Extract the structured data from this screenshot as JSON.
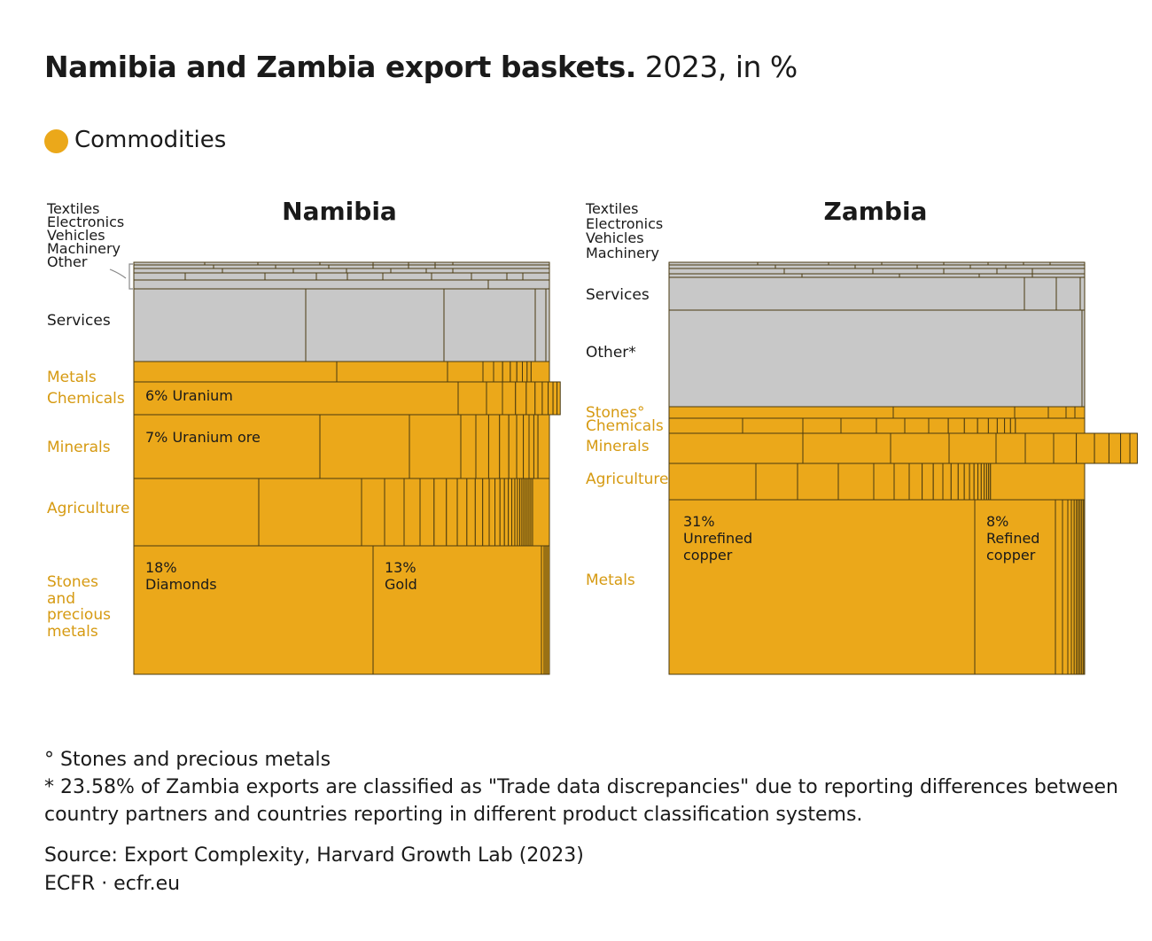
{
  "header": {
    "title_bold": "Namibia and Zambia export baskets.",
    "title_light": "2023, in %"
  },
  "legend": {
    "label": "Commodities",
    "color": "#eba81a"
  },
  "colors": {
    "commodity": "#eba81a",
    "non_commodity": "#c8c8c8",
    "border": "#4a3a10"
  },
  "chart_data": [
    {
      "type": "treemap",
      "title": "Namibia",
      "label_stack": [
        "Textiles",
        "Electronics",
        "Vehicles",
        "Machinery",
        "Other"
      ],
      "categories": [
        {
          "name": "Textiles",
          "commodity": false,
          "share": 0.3
        },
        {
          "name": "Electronics",
          "commodity": false,
          "share": 0.4
        },
        {
          "name": "Vehicles",
          "commodity": false,
          "share": 0.6
        },
        {
          "name": "Machinery",
          "commodity": false,
          "share": 1.2
        },
        {
          "name": "Other",
          "commodity": false,
          "share": 1.0
        },
        {
          "name": "Services",
          "commodity": false,
          "share": 18.0
        },
        {
          "name": "Metals",
          "commodity": true,
          "share": 5.0
        },
        {
          "name": "Chemicals",
          "commodity": true,
          "share": 8.0
        },
        {
          "name": "Minerals",
          "commodity": true,
          "share": 15.5
        },
        {
          "name": "Agriculture",
          "commodity": true,
          "share": 16.0
        },
        {
          "name": "Stones and precious metals",
          "commodity": true,
          "share": 31.5
        }
      ],
      "highlights": [
        {
          "category": "Chemicals",
          "pct": "6%",
          "product": "Uranium",
          "value": 6
        },
        {
          "category": "Minerals",
          "pct": "7%",
          "product": "Uranium ore",
          "value": 7
        },
        {
          "category": "Stones and precious metals",
          "pct": "18%",
          "product": "Diamonds",
          "value": 18
        },
        {
          "category": "Stones and precious metals",
          "pct": "13%",
          "product": "Gold",
          "value": 13
        }
      ],
      "category_labels": [
        {
          "text": "Services",
          "kind": "grey"
        },
        {
          "text": "Metals",
          "kind": "gold"
        },
        {
          "text": "Chemicals",
          "kind": "gold"
        },
        {
          "text": "Minerals",
          "kind": "gold"
        },
        {
          "text": "Agriculture",
          "kind": "gold"
        },
        {
          "lines": [
            "Stones",
            "and",
            "precious",
            "metals"
          ],
          "kind": "gold"
        }
      ]
    },
    {
      "type": "treemap",
      "title": "Zambia",
      "label_stack": [
        "Textiles",
        "Electronics",
        "Vehicles",
        "Machinery"
      ],
      "categories": [
        {
          "name": "Textiles",
          "commodity": false,
          "share": 0.2
        },
        {
          "name": "Electronics",
          "commodity": false,
          "share": 0.3
        },
        {
          "name": "Vehicles",
          "commodity": false,
          "share": 0.6
        },
        {
          "name": "Machinery",
          "commodity": false,
          "share": 1.0
        },
        {
          "name": "Services",
          "commodity": false,
          "share": 7.5
        },
        {
          "name": "Other*",
          "commodity": false,
          "share": 23.58
        },
        {
          "name": "Stones°",
          "commodity": true,
          "share": 2.2
        },
        {
          "name": "Chemicals",
          "commodity": true,
          "share": 3.0
        },
        {
          "name": "Minerals",
          "commodity": true,
          "share": 7.0
        },
        {
          "name": "Agriculture",
          "commodity": true,
          "share": 9.5
        },
        {
          "name": "Metals",
          "commodity": true,
          "share": 41.0
        }
      ],
      "highlights": [
        {
          "category": "Metals",
          "pct": "31%",
          "product": "Unrefined copper",
          "value": 31
        },
        {
          "category": "Metals",
          "pct": "8%",
          "product": "Refined copper",
          "value": 8
        }
      ],
      "category_labels": [
        {
          "text": "Services",
          "kind": "grey"
        },
        {
          "text": "Other*",
          "kind": "grey"
        },
        {
          "text": "Stones°",
          "kind": "gold"
        },
        {
          "text": "Chemicals",
          "kind": "gold"
        },
        {
          "text": "Minerals",
          "kind": "gold"
        },
        {
          "text": "Agriculture",
          "kind": "gold"
        },
        {
          "text": "Metals",
          "kind": "gold"
        }
      ]
    }
  ],
  "notes": {
    "footnote_1": "° Stones and precious metals",
    "footnote_2a": "* 23.58% of Zambia exports are classified as \"Trade data discrepancies\" due to reporting differences between",
    "footnote_2b": "country partners and countries reporting in different product classification systems."
  },
  "source": {
    "line1": "Source: Export Complexity, Harvard Growth Lab (2023)",
    "line2": "ECFR · ecfr.eu"
  }
}
